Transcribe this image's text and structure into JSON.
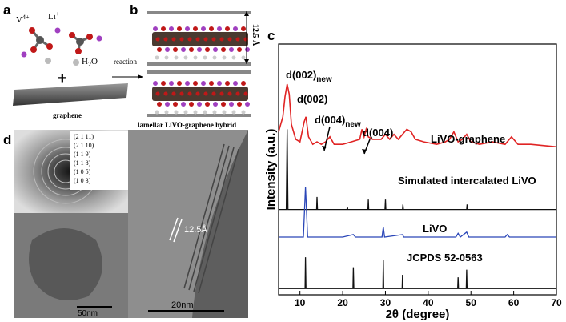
{
  "panels": {
    "a": {
      "label": "a",
      "v_ion": {
        "base": "V",
        "sup": "4+"
      },
      "li_ion": {
        "base": "Li",
        "sup": "+"
      },
      "water": {
        "pre": "H",
        "sub": "2",
        "post": "O"
      },
      "plus": "+",
      "graphene": "graphene"
    },
    "b": {
      "label": "b",
      "spacing": "12.5 Å",
      "reaction": "reaction",
      "caption": "lamellar LiVO-graphene hybrid"
    },
    "c": {
      "label": "c"
    },
    "d": {
      "label": "d",
      "planes": [
        "(2 1 11)",
        "(2 1 10)",
        "(1 1 9)",
        "(1 1 8)",
        "(1 0 5)",
        "(1 0 3)"
      ],
      "spacing": "12.5Å",
      "scale_left": "50nm",
      "scale_right": "20nm"
    }
  },
  "chart_data": {
    "type": "line",
    "x_label": "2θ (degree)",
    "y_label": "Intensity (a.u.)",
    "xlim": [
      5,
      70
    ],
    "ylim": [
      0,
      100
    ],
    "xticks": [
      10,
      20,
      30,
      40,
      50,
      60,
      70
    ],
    "annotations": [
      {
        "text": "d(002)",
        "sub": "new"
      },
      {
        "text": "d(002)"
      },
      {
        "text": "d(004)",
        "sub": "new"
      },
      {
        "text": "d(004)"
      }
    ],
    "series": [
      {
        "name": "LiVO-graphene",
        "color": "#e02424",
        "x": [
          5,
          6,
          6.5,
          7,
          7.5,
          8,
          9,
          10,
          11,
          11.4,
          12,
          13,
          14,
          15,
          16,
          17,
          18,
          20,
          22,
          24,
          24.5,
          25,
          25.5,
          26,
          27,
          29,
          30,
          31,
          32,
          33,
          34,
          35,
          36,
          37,
          39,
          42,
          44,
          45,
          46,
          47,
          48,
          49,
          50,
          52,
          55,
          58,
          59.5,
          61,
          64,
          70
        ],
        "values": [
          65,
          71,
          79,
          84,
          80,
          68,
          62,
          61,
          69,
          71,
          63,
          60,
          61,
          60,
          61,
          63,
          60,
          60,
          61,
          62,
          66,
          63,
          66,
          63,
          62,
          62,
          64,
          62,
          64,
          62,
          64,
          66,
          65,
          62,
          61,
          60,
          61,
          62,
          65,
          61,
          62,
          64,
          61,
          60,
          61,
          60,
          63,
          60,
          60,
          59
        ]
      },
      {
        "name": "Simulated intercalated LiVO",
        "color": "#111111",
        "x": [
          5,
          6.8,
          7,
          7.2,
          13.9,
          14,
          14.1,
          21,
          21.1,
          21.2,
          25.9,
          26,
          26.1,
          29.9,
          30,
          30.1,
          34,
          34.1,
          34.2,
          49,
          49.1,
          49.2,
          70
        ],
        "values": [
          34,
          34,
          66,
          34,
          34,
          39,
          34,
          34,
          35,
          34,
          34,
          38,
          34,
          34,
          38,
          34,
          34,
          36,
          34,
          34,
          36,
          34,
          34
        ]
      },
      {
        "name": "LiVO",
        "color": "#2a46b8",
        "x": [
          5,
          10.8,
          11.3,
          11.8,
          20,
          22.5,
          23,
          29.2,
          29.5,
          29.8,
          34,
          34.3,
          46.5,
          47,
          47.5,
          49,
          49.5,
          58,
          58.5,
          59,
          70
        ],
        "values": [
          23,
          23,
          43,
          23,
          23,
          24,
          23,
          23,
          27,
          23,
          24,
          23,
          23,
          24.5,
          23,
          25,
          23,
          23,
          24,
          23,
          23
        ]
      },
      {
        "name": "JCPDS  52-0563",
        "color": "#111111",
        "x": [
          5,
          11.2,
          11.3,
          11.4,
          22.4,
          22.5,
          22.6,
          29.4,
          29.5,
          29.6,
          33.9,
          34,
          34.1,
          46.9,
          47,
          47.1,
          48.9,
          49,
          49.1,
          70
        ],
        "values": [
          2.5,
          2.5,
          15,
          2.5,
          2.5,
          11,
          2.5,
          2.5,
          14,
          2.5,
          2.5,
          8,
          2.5,
          2.5,
          7,
          2.5,
          2.5,
          10,
          2.5,
          2.5
        ]
      }
    ]
  }
}
